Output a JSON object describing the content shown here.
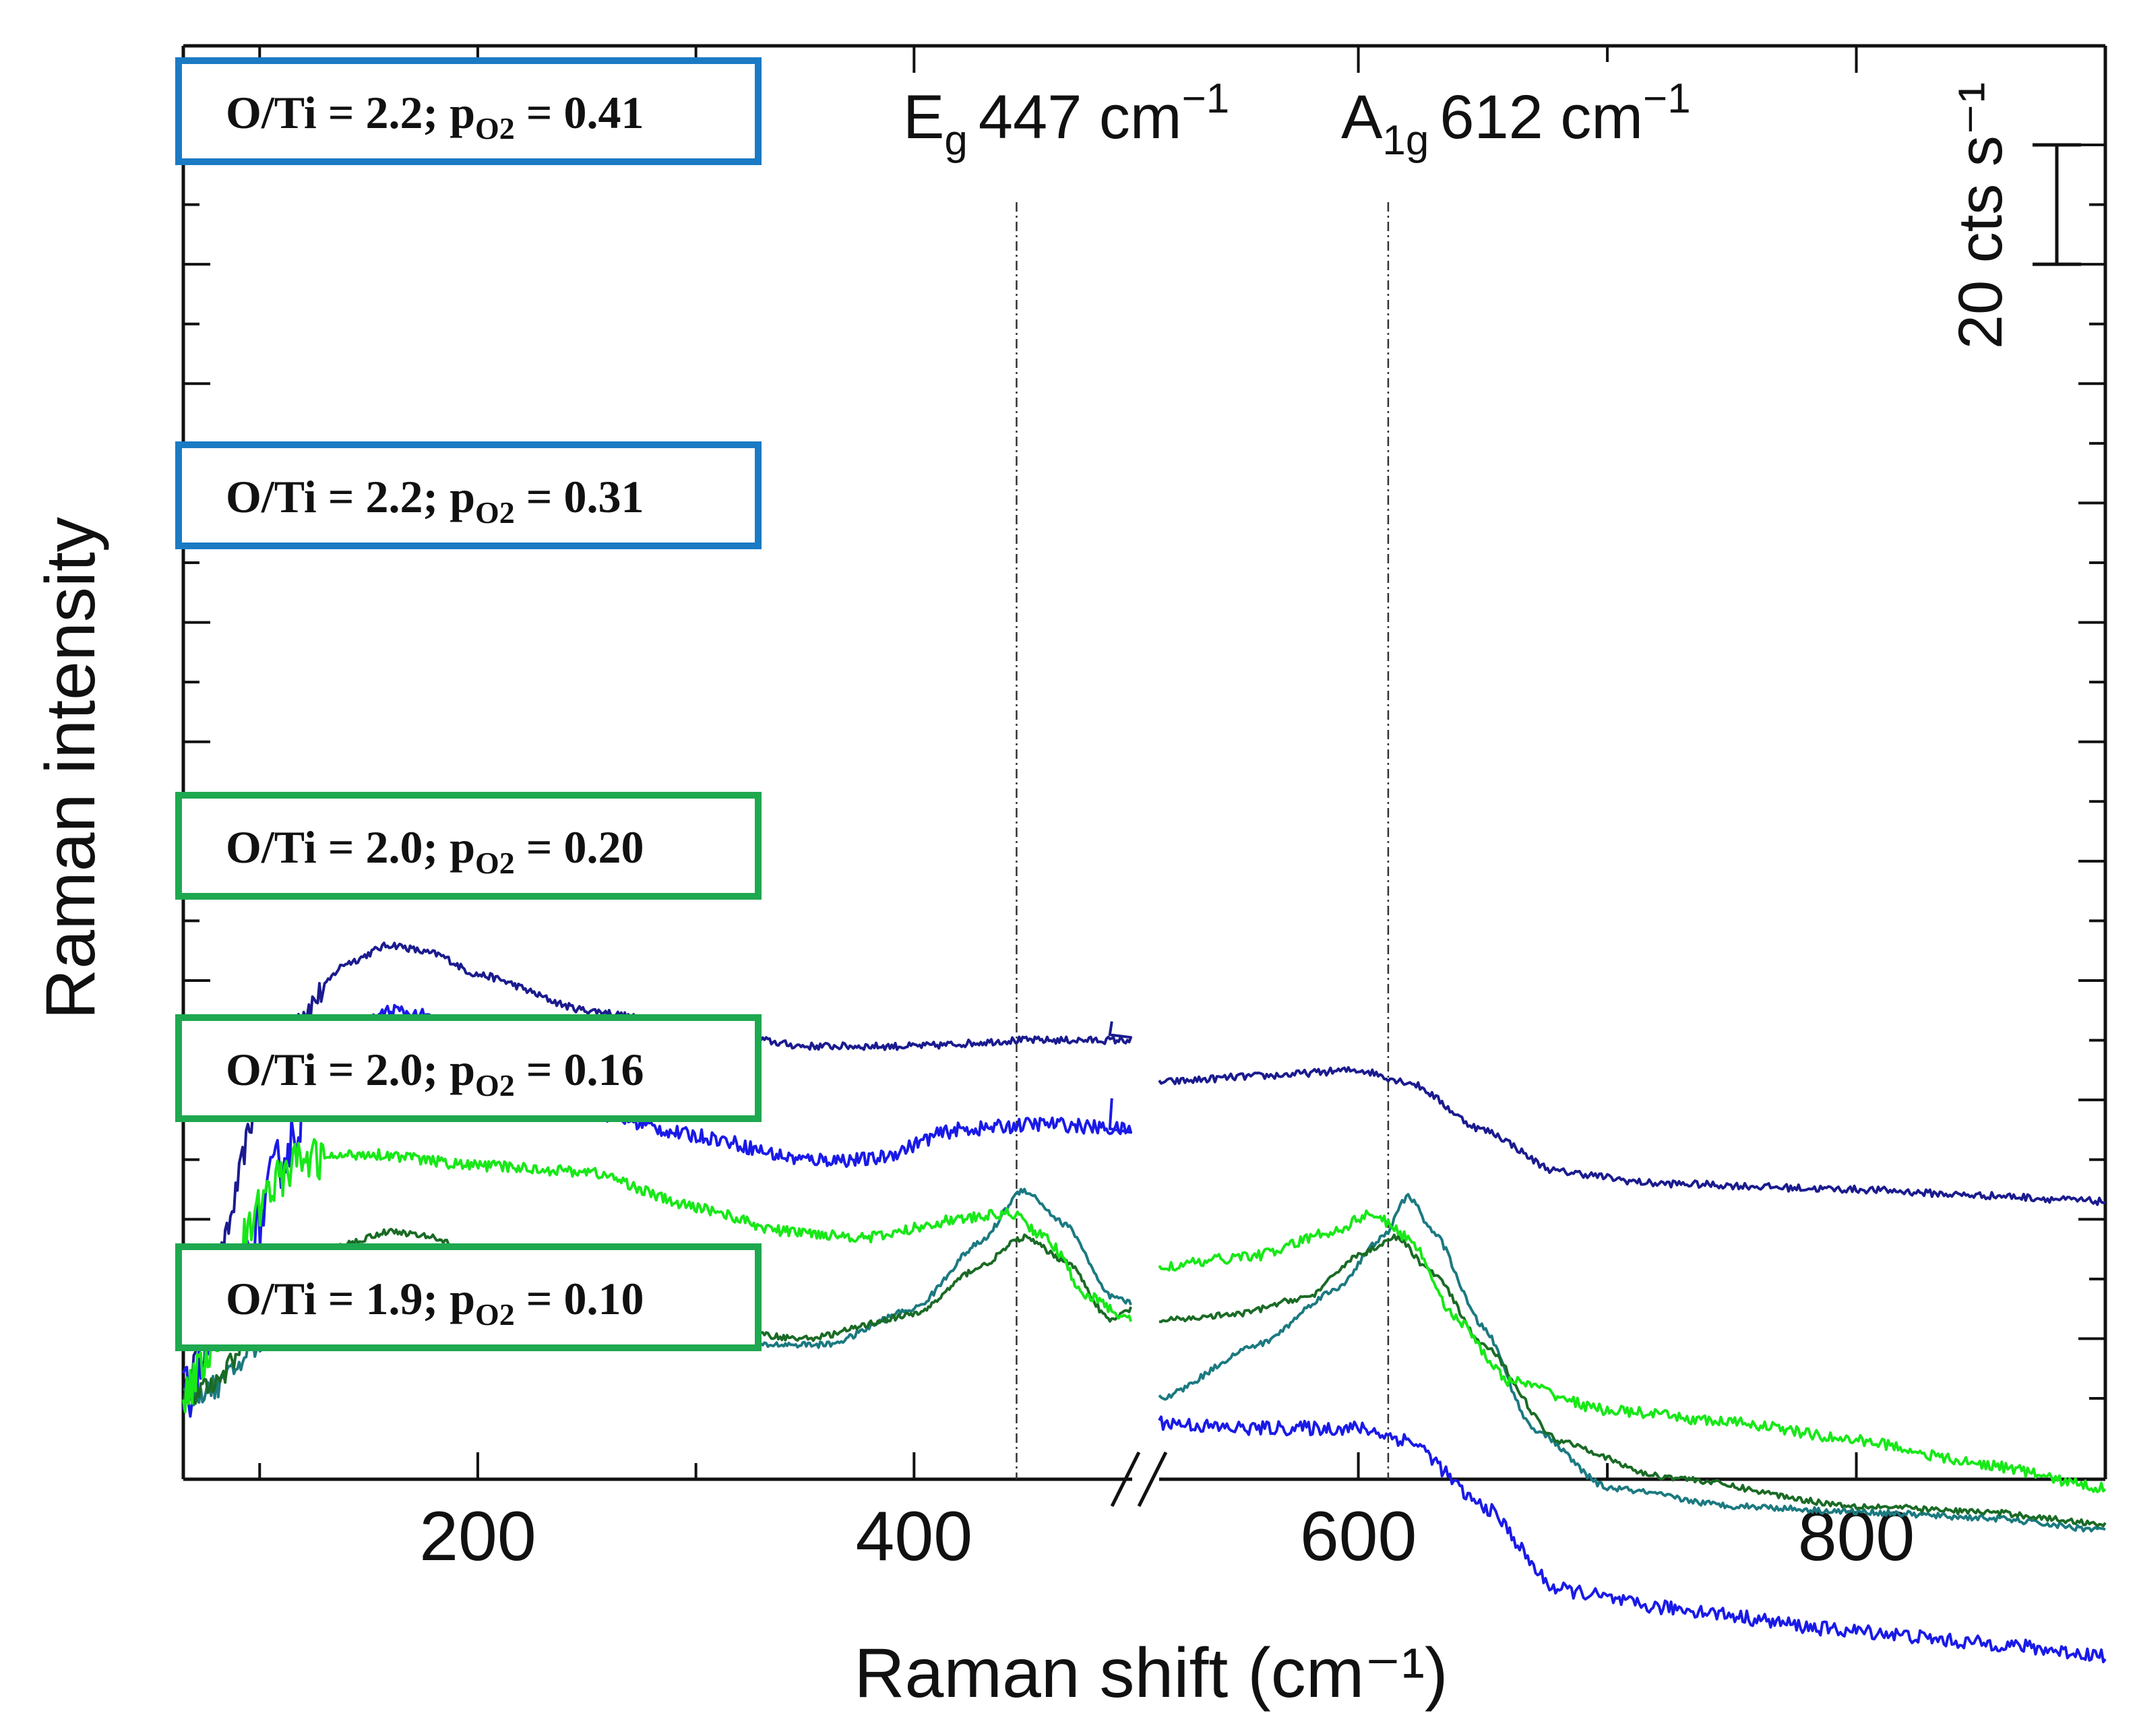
{
  "chart_data": {
    "type": "line",
    "title": "",
    "xlabel": "Raman shift (cm⁻¹)",
    "ylabel": "Raman intensity",
    "x_break": [
      500,
      520
    ],
    "xlim": [
      65,
      900
    ],
    "x_ticks": [
      200,
      400,
      600,
      800
    ],
    "x_tick_labels": [
      "200",
      "400",
      "600",
      "800"
    ],
    "y_ticks_counts": [
      0,
      20,
      40,
      60,
      80,
      100,
      120,
      140,
      160,
      180,
      200
    ],
    "grid": false,
    "ylim_counts": [
      -10,
      200
    ],
    "scale_bar": {
      "value": 20,
      "label": "20 cts s⁻¹"
    },
    "peak_annotations": [
      {
        "position": 447,
        "symbol": "E",
        "subscript": "g",
        "value_text": "447 cm",
        "superscript": "−1"
      },
      {
        "position": 612,
        "symbol": "A",
        "subscript": "1g",
        "value_text": "612 cm",
        "superscript": "−1"
      }
    ],
    "series": [
      {
        "name": "O/Ti = 2.2; pO2 = 0.41",
        "color": "#1b1b8f",
        "noise": 0.6,
        "points": [
          [
            65,
            -10
          ],
          [
            80,
            12
          ],
          [
            100,
            40
          ],
          [
            120,
            55
          ],
          [
            140,
            63
          ],
          [
            160,
            66
          ],
          [
            180,
            64.5
          ],
          [
            200,
            61
          ],
          [
            250,
            55
          ],
          [
            300,
            52
          ],
          [
            350,
            49
          ],
          [
            400,
            49
          ],
          [
            450,
            50
          ],
          [
            500,
            50
          ],
          [
            501,
            53
          ],
          [
            520,
            43
          ],
          [
            560,
            44
          ],
          [
            600,
            45
          ],
          [
            620,
            43
          ],
          [
            650,
            35
          ],
          [
            680,
            28
          ],
          [
            720,
            26
          ],
          [
            800,
            25
          ],
          [
            850,
            24
          ],
          [
            900,
            23
          ]
        ]
      },
      {
        "name": "O/Ti = 2.2; pO2 = 0.31",
        "color": "#1a1ae8",
        "noise": 1.2,
        "points": [
          [
            65,
            -10
          ],
          [
            80,
            0
          ],
          [
            95,
            15
          ],
          [
            110,
            30
          ],
          [
            125,
            42
          ],
          [
            140,
            50
          ],
          [
            160,
            55
          ],
          [
            175,
            54
          ],
          [
            200,
            48
          ],
          [
            250,
            38
          ],
          [
            300,
            34
          ],
          [
            350,
            30
          ],
          [
            380,
            30
          ],
          [
            420,
            35
          ],
          [
            460,
            36
          ],
          [
            500,
            35
          ],
          [
            501,
            40
          ],
          [
            520,
            -14
          ],
          [
            550,
            -15
          ],
          [
            600,
            -15
          ],
          [
            620,
            -17
          ],
          [
            650,
            -28
          ],
          [
            680,
            -42
          ],
          [
            720,
            -45
          ],
          [
            800,
            -49
          ],
          [
            850,
            -51
          ],
          [
            900,
            -53
          ]
        ]
      },
      {
        "name": "O/Ti = 2.0; pO2 = 0.20",
        "color": "#1b7a80",
        "noise": 0.5,
        "points": [
          [
            65,
            -10
          ],
          [
            80,
            -8
          ],
          [
            100,
            -1
          ],
          [
            120,
            6
          ],
          [
            140,
            10
          ],
          [
            160,
            12
          ],
          [
            180,
            11
          ],
          [
            200,
            9
          ],
          [
            250,
            7
          ],
          [
            290,
            0
          ],
          [
            320,
            -1
          ],
          [
            360,
            -1
          ],
          [
            400,
            5
          ],
          [
            430,
            16
          ],
          [
            450,
            25
          ],
          [
            470,
            19
          ],
          [
            490,
            7
          ],
          [
            500,
            6
          ],
          [
            520,
            -10
          ],
          [
            560,
            -1
          ],
          [
            590,
            8
          ],
          [
            610,
            17
          ],
          [
            620,
            24
          ],
          [
            630,
            18
          ],
          [
            650,
            2
          ],
          [
            670,
            -15
          ],
          [
            700,
            -25
          ],
          [
            750,
            -28
          ],
          [
            800,
            -29
          ],
          [
            850,
            -30
          ],
          [
            900,
            -32
          ]
        ]
      },
      {
        "name": "O/Ti = 2.0; pO2 = 0.16",
        "color": "#1a6b25",
        "noise": 0.5,
        "points": [
          [
            65,
            -10
          ],
          [
            80,
            -8
          ],
          [
            100,
            5
          ],
          [
            120,
            11
          ],
          [
            140,
            16
          ],
          [
            160,
            18
          ],
          [
            180,
            17
          ],
          [
            200,
            13
          ],
          [
            250,
            5
          ],
          [
            300,
            2
          ],
          [
            350,
            0
          ],
          [
            400,
            4
          ],
          [
            430,
            12
          ],
          [
            450,
            17
          ],
          [
            470,
            13
          ],
          [
            490,
            3
          ],
          [
            500,
            5
          ],
          [
            520,
            3
          ],
          [
            550,
            4
          ],
          [
            580,
            7
          ],
          [
            600,
            14
          ],
          [
            615,
            17
          ],
          [
            630,
            11
          ],
          [
            650,
            -1
          ],
          [
            680,
            -17
          ],
          [
            720,
            -23
          ],
          [
            800,
            -28
          ],
          [
            850,
            -29
          ],
          [
            900,
            -31
          ]
        ]
      },
      {
        "name": "O/Ti = 1.9; pO2 = 0.10",
        "color": "#18e818",
        "noise": 0.9,
        "points": [
          [
            65,
            -10
          ],
          [
            80,
            0
          ],
          [
            95,
            18
          ],
          [
            105,
            26
          ],
          [
            120,
            30
          ],
          [
            150,
            31
          ],
          [
            200,
            29
          ],
          [
            250,
            28
          ],
          [
            300,
            22
          ],
          [
            340,
            18
          ],
          [
            380,
            17
          ],
          [
            420,
            20
          ],
          [
            445,
            21
          ],
          [
            460,
            17
          ],
          [
            480,
            7
          ],
          [
            500,
            3
          ],
          [
            520,
            12
          ],
          [
            560,
            14
          ],
          [
            590,
            18
          ],
          [
            605,
            21
          ],
          [
            620,
            17
          ],
          [
            640,
            3
          ],
          [
            660,
            -7
          ],
          [
            700,
            -12
          ],
          [
            750,
            -14
          ],
          [
            800,
            -17
          ],
          [
            850,
            -21
          ],
          [
            900,
            -25
          ]
        ]
      }
    ],
    "legend": [
      {
        "text": "O/Ti = 2.2; pO2 = 0.41",
        "prefix": "O/Ti = 2.2; p",
        "sub": "O2",
        "suffix": " =  0.41",
        "box_color": "#1b7ac4"
      },
      {
        "text": "O/Ti = 2.2; pO2 = 0.31",
        "prefix": "O/Ti = 2.2; p",
        "sub": "O2",
        "suffix": " =  0.31",
        "box_color": "#1b7ac4"
      },
      {
        "text": "O/Ti = 2.0; pO2 = 0.20",
        "prefix": "O/Ti = 2.0; p",
        "sub": "O2",
        "suffix": " =  0.20",
        "box_color": "#1ea84f"
      },
      {
        "text": "O/Ti = 2.0; pO2 = 0.16",
        "prefix": "O/Ti = 2.0; p",
        "sub": "O2",
        "suffix": " =  0.16",
        "box_color": "#1ea84f"
      },
      {
        "text": "O/Ti = 1.9; pO2 = 0.10",
        "prefix": "O/Ti = 1.9; p",
        "sub": "O2",
        "suffix": " =  0.10",
        "box_color": "#1ea84f"
      }
    ]
  }
}
